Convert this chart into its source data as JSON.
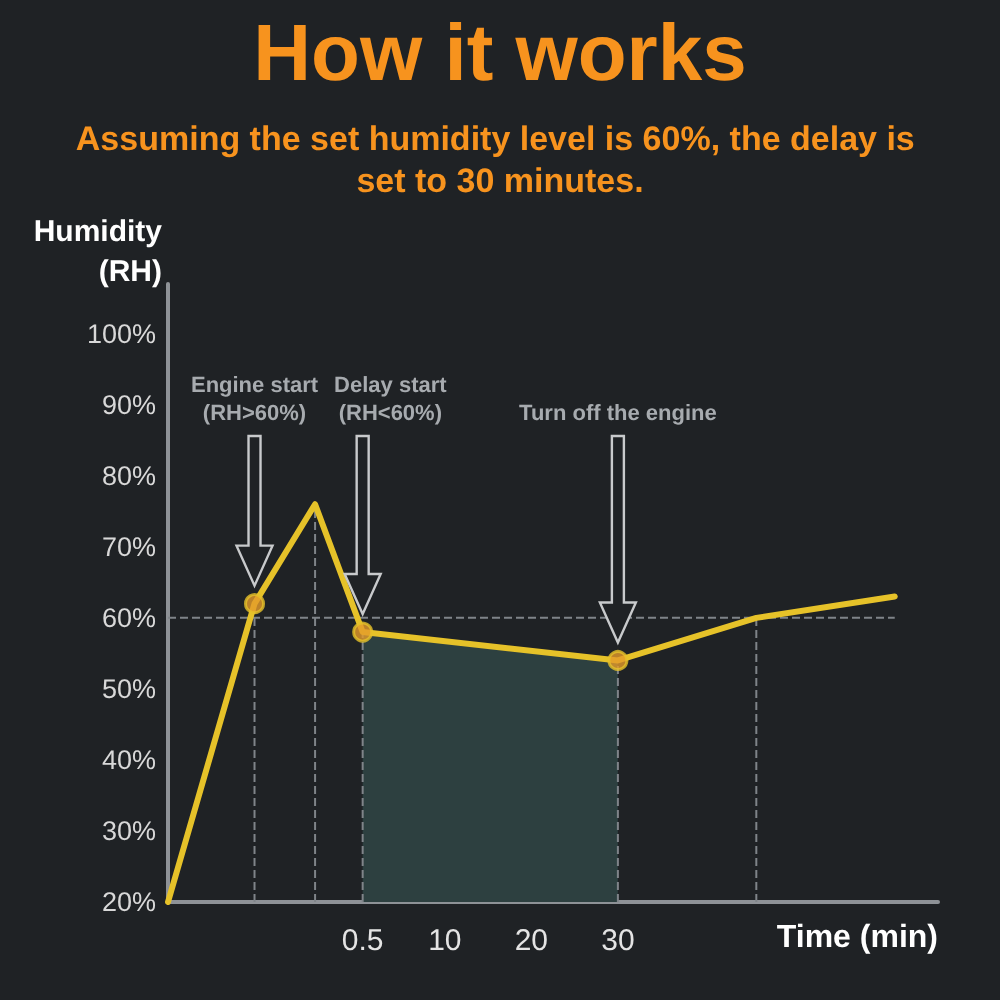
{
  "chart_data": {
    "type": "line",
    "title": "How it works",
    "subtitle": "Assuming the set humidity level is 60%, the delay is set to 30 minutes.",
    "xlabel": "Time (min)",
    "ylabel": "Humidity\n(RH)",
    "series": [
      {
        "type": "line",
        "color": "#e6c229",
        "x": [
          -22,
          -12,
          -5,
          0.5,
          30,
          46,
          62
        ],
        "values": [
          20,
          62,
          76,
          58,
          54,
          60,
          63
        ],
        "marker": "none"
      },
      {
        "type": "scatter",
        "color": "#e39b2b",
        "x": [
          -12,
          0.5,
          30
        ],
        "values": [
          62,
          58,
          54
        ],
        "marker": "circle"
      }
    ],
    "xlim": [
      -22,
      67
    ],
    "xticks": [
      0.5,
      10,
      20,
      30
    ],
    "ylim": [
      20,
      107
    ],
    "yticks": [
      {
        "value": 20,
        "label": "20%"
      },
      {
        "value": 30,
        "label": "30%"
      },
      {
        "value": 40,
        "label": "40%"
      },
      {
        "value": 50,
        "label": "50%"
      },
      {
        "value": 60,
        "label": "60%"
      },
      {
        "value": 70,
        "label": "70%"
      },
      {
        "value": 80,
        "label": "80%"
      },
      {
        "value": 90,
        "label": "90%"
      },
      {
        "value": 100,
        "label": "100%"
      }
    ],
    "ref_lines": [
      {
        "axis": "y",
        "value": 60,
        "color": "#7f8489",
        "line_style": "dashed"
      },
      {
        "axis": "x",
        "value": -12,
        "color": "#7f8489",
        "line_style": "dashed"
      },
      {
        "axis": "x",
        "value": -5,
        "color": "#7f8489",
        "line_style": "dashed"
      },
      {
        "axis": "x",
        "value": 0.5,
        "color": "#7f8489",
        "line_style": "dashed"
      },
      {
        "axis": "x",
        "value": 30,
        "color": "#7f8489",
        "line_style": "dashed"
      },
      {
        "axis": "x",
        "value": 46,
        "color": "#7f8489",
        "line_style": "dashed"
      }
    ],
    "bands": [
      {
        "axis": "x",
        "from": 0.5,
        "to": 30,
        "color": "#2d4040"
      }
    ],
    "annotations": [
      "Engine start\n(RH>60%)",
      "Delay start\n(RH<60%)",
      "Turn off the engine"
    ]
  }
}
